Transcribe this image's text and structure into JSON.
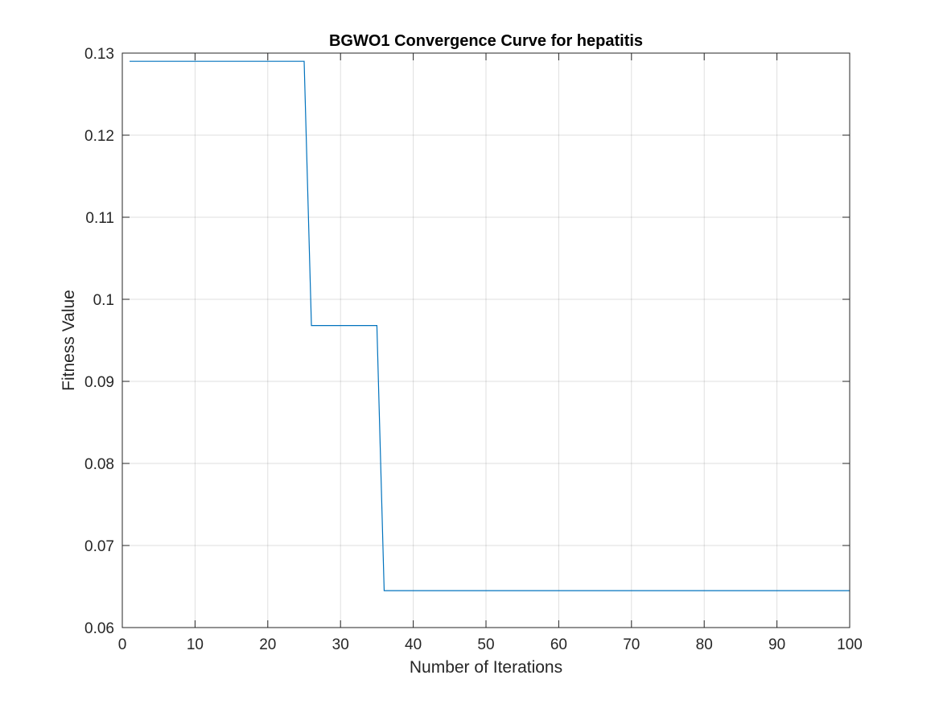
{
  "chart_data": {
    "type": "line",
    "title": "BGWO1 Convergence Curve for hepatitis",
    "xlabel": "Number of Iterations",
    "ylabel": "Fitness Value",
    "xlim": [
      0,
      100
    ],
    "ylim": [
      0.06,
      0.13
    ],
    "xticks": [
      0,
      10,
      20,
      30,
      40,
      50,
      60,
      70,
      80,
      90,
      100
    ],
    "yticks": [
      0.06,
      0.07,
      0.08,
      0.09,
      0.1,
      0.11,
      0.12,
      0.13
    ],
    "xtick_labels": [
      "0",
      "10",
      "20",
      "30",
      "40",
      "50",
      "60",
      "70",
      "80",
      "90",
      "100"
    ],
    "ytick_labels": [
      "0.06",
      "0.07",
      "0.08",
      "0.09",
      "0.1",
      "0.11",
      "0.12",
      "0.13"
    ],
    "grid": true,
    "series": [
      {
        "color": "#0072BD",
        "x": [
          1,
          25,
          26,
          35,
          36,
          100
        ],
        "y": [
          0.129,
          0.129,
          0.0968,
          0.0968,
          0.0645,
          0.0645
        ]
      }
    ]
  }
}
